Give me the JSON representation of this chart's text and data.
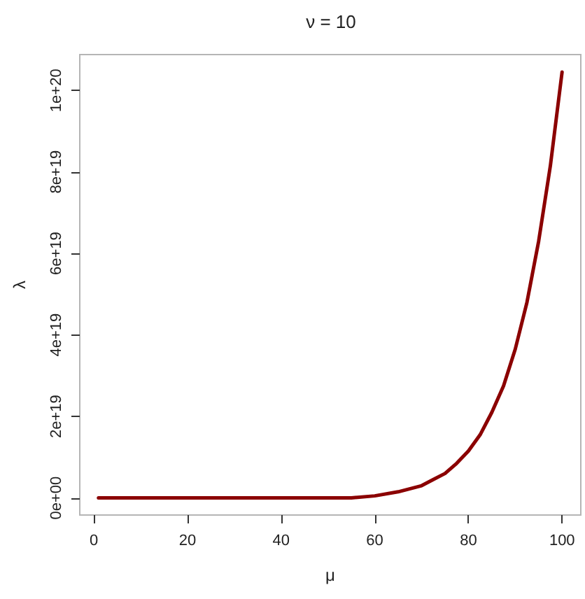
{
  "chart_data": {
    "type": "line",
    "title": "ν = 10",
    "xlabel": "μ",
    "ylabel": "λ",
    "x": [
      1,
      10,
      20,
      30,
      40,
      50,
      55,
      60,
      65,
      70,
      72.5,
      75,
      77.5,
      80,
      82.5,
      85,
      87.5,
      90,
      92.5,
      95,
      97.5,
      100
    ],
    "series": [
      {
        "color": "#8b0000",
        "values": [
          0,
          0,
          0,
          0,
          0,
          0,
          0,
          5e+17,
          1.5e+18,
          3e+18,
          4.5e+18,
          6e+18,
          8.5e+18,
          1.15e+19,
          1.55e+19,
          2.1e+19,
          2.75e+19,
          3.65e+19,
          4.8e+19,
          6.3e+19,
          8.15e+19,
          1.045e+20
        ]
      }
    ],
    "xlim": [
      -3,
      104
    ],
    "xticks": [
      0,
      20,
      40,
      60,
      80,
      100
    ],
    "ylim": [
      -4.2e+18,
      1.088e+20
    ],
    "yticks": [
      {
        "value": 0,
        "label": "0e+00"
      },
      {
        "value": 2e+19,
        "label": "2e+19"
      },
      {
        "value": 4e+19,
        "label": "4e+19"
      },
      {
        "value": 6e+19,
        "label": "6e+19"
      },
      {
        "value": 8e+19,
        "label": "8e+19"
      },
      {
        "value": 1e+20,
        "label": "1e+20"
      }
    ],
    "grid": false,
    "marker": "none",
    "line_style": "solid"
  }
}
